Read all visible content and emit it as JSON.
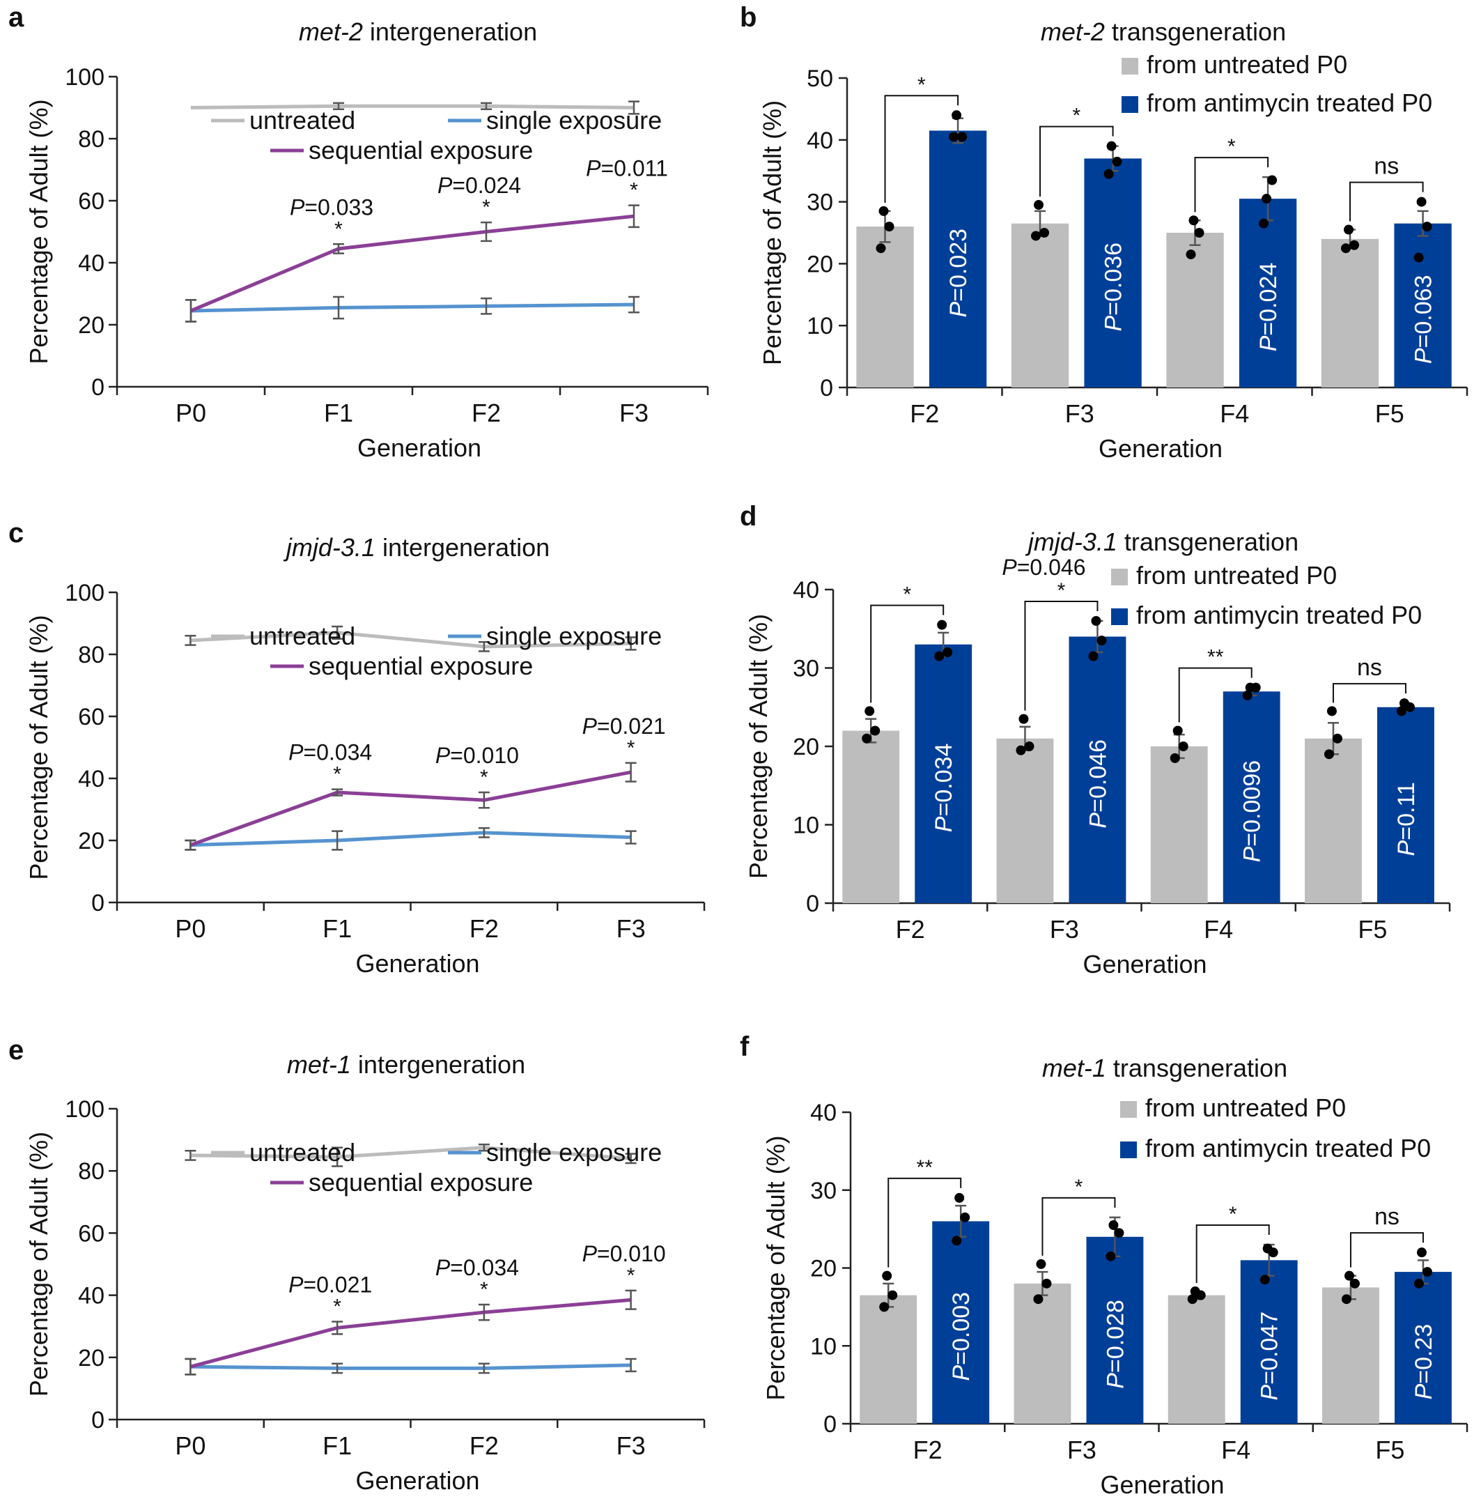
{
  "figure_title": "",
  "colors": {
    "untreated": "#bcbcbc",
    "single": "#5593cf",
    "sequential": "#8b3f96",
    "bar_untreated": "#bdbdbd",
    "bar_treated": "#003f98",
    "axis": "#222222",
    "error": "#555555"
  },
  "chart_data": [
    {
      "type": "line",
      "panel": "a",
      "title_gene": "met-2",
      "title_suffix": "intergeneration",
      "xlabel": "Generation",
      "ylabel": "Percentage of Adult (%)",
      "ylim": [
        0,
        100
      ],
      "yticks": [
        0,
        20,
        40,
        60,
        80,
        100
      ],
      "categories": [
        "P0",
        "F1",
        "F2",
        "F3"
      ],
      "legend": {
        "untreated": "untreated",
        "single": "single exposure",
        "sequential": "sequential exposure"
      },
      "series": [
        {
          "name": "untreated",
          "values": [
            90,
            90.5,
            90.5,
            90
          ],
          "errors": [
            0,
            1,
            1,
            2
          ]
        },
        {
          "name": "single exposure",
          "values": [
            24.5,
            25.5,
            26,
            26.5
          ],
          "errors": [
            3.5,
            3.5,
            2.5,
            2.5
          ]
        },
        {
          "name": "sequential exposure",
          "values": [
            24.5,
            44.5,
            50,
            55
          ],
          "errors": [
            3.5,
            1.5,
            3,
            3.5
          ]
        }
      ],
      "annotations": [
        {
          "index": 1,
          "p": "=0.033",
          "star": "*"
        },
        {
          "index": 2,
          "p": "=0.024",
          "star": "*"
        },
        {
          "index": 3,
          "p": "=0.011",
          "star": "*"
        }
      ]
    },
    {
      "type": "bar",
      "panel": "b",
      "title_gene": "met-2",
      "title_suffix": "transgeneration",
      "xlabel": "Generation",
      "ylabel": "Percentage of Adult (%)",
      "ylim": [
        0,
        50
      ],
      "yticks": [
        0,
        10,
        20,
        30,
        40,
        50
      ],
      "categories": [
        "F2",
        "F3",
        "F4",
        "F5"
      ],
      "legend": [
        "from untreated P0",
        "from antimycin treated P0"
      ],
      "series": [
        {
          "name": "from untreated P0",
          "values": [
            26,
            26.5,
            25,
            24
          ],
          "errors": [
            2.5,
            2,
            2,
            1.5
          ],
          "points": [
            [
              28.5,
              26,
              22.5
            ],
            [
              29.5,
              25,
              24.5
            ],
            [
              27,
              25,
              21.5
            ],
            [
              25.5,
              23,
              22.5
            ]
          ]
        },
        {
          "name": "from antimycin treated P0",
          "values": [
            41.5,
            37,
            30.5,
            26.5
          ],
          "errors": [
            2,
            2,
            3.5,
            2
          ],
          "points": [
            [
              44,
              40.5,
              40.5
            ],
            [
              39,
              36.5,
              34.5
            ],
            [
              30.5,
              33.5,
              26.5
            ],
            [
              30,
              26,
              21
            ]
          ]
        }
      ],
      "pvalues": [
        "=0.023",
        "=0.036",
        "=0.024",
        "=0.063"
      ],
      "sig": [
        "*",
        "*",
        "*",
        "ns"
      ]
    },
    {
      "type": "line",
      "panel": "c",
      "title_gene": "jmjd-3.1",
      "title_suffix": "intergeneration",
      "xlabel": "Generation",
      "ylabel": "Percentage of Adult (%)",
      "ylim": [
        0,
        100
      ],
      "yticks": [
        0,
        20,
        40,
        60,
        80,
        100
      ],
      "categories": [
        "P0",
        "F1",
        "F2",
        "F3"
      ],
      "legend": {
        "untreated": "untreated",
        "single": "single exposure",
        "sequential": "sequential exposure"
      },
      "series": [
        {
          "name": "untreated",
          "values": [
            84.5,
            87,
            82.5,
            83.5
          ],
          "errors": [
            1.5,
            2,
            1.5,
            2
          ]
        },
        {
          "name": "single exposure",
          "values": [
            18.5,
            20,
            22.5,
            21
          ],
          "errors": [
            1.5,
            3,
            1.5,
            2
          ]
        },
        {
          "name": "sequential exposure",
          "values": [
            18.5,
            35.5,
            33,
            42
          ],
          "errors": [
            1.5,
            1,
            2.5,
            3
          ]
        }
      ],
      "annotations": [
        {
          "index": 1,
          "p": "=0.034",
          "star": "*"
        },
        {
          "index": 2,
          "p": "=0.010",
          "star": "*"
        },
        {
          "index": 3,
          "p": "=0.021",
          "star": "*"
        }
      ]
    },
    {
      "type": "bar",
      "panel": "d",
      "title_gene": "jmjd-3.1",
      "title_suffix": "transgeneration",
      "xlabel": "Generation",
      "ylabel": "Percentage of Adult (%)",
      "ylim": [
        0,
        40
      ],
      "yticks": [
        0,
        10,
        20,
        30,
        40
      ],
      "categories": [
        "F2",
        "F3",
        "F4",
        "F5"
      ],
      "legend": [
        "from untreated P0",
        "from antimycin treated P0"
      ],
      "series": [
        {
          "name": "from untreated P0",
          "values": [
            22,
            21,
            20,
            21
          ],
          "errors": [
            1.5,
            1.5,
            1.5,
            2
          ],
          "points": [
            [
              24.5,
              22,
              21
            ],
            [
              23.5,
              20,
              19.5
            ],
            [
              22,
              20,
              18.5
            ],
            [
              24.5,
              21,
              19
            ]
          ]
        },
        {
          "name": "from antimycin treated P0",
          "values": [
            33,
            34,
            27,
            25
          ],
          "errors": [
            1.5,
            2,
            0.5,
            0.5
          ],
          "points": [
            [
              35.5,
              32,
              31.5
            ],
            [
              36,
              33.5,
              31.5
            ],
            [
              27.5,
              27.5,
              26.5
            ],
            [
              25.5,
              25,
              24.5
            ]
          ]
        }
      ],
      "pvalues": [
        "=0.034",
        "=0.046",
        "=0.0096",
        "=0.11"
      ],
      "sig": [
        "*",
        "*",
        "**",
        "ns"
      ],
      "extra_p": {
        "index": 1,
        "text": "=0.046"
      }
    },
    {
      "type": "line",
      "panel": "e",
      "title_gene": "met-1",
      "title_suffix": "intergeneration",
      "xlabel": "Generation",
      "ylabel": "Percentage of Adult (%)",
      "ylim": [
        0,
        100
      ],
      "yticks": [
        0,
        20,
        40,
        60,
        80,
        100
      ],
      "categories": [
        "P0",
        "F1",
        "F2",
        "F3"
      ],
      "legend": {
        "untreated": "untreated",
        "single": "single exposure",
        "sequential": "sequential exposure"
      },
      "series": [
        {
          "name": "untreated",
          "values": [
            85,
            84.5,
            87.5,
            84
          ],
          "errors": [
            1.5,
            3,
            1,
            1.5
          ]
        },
        {
          "name": "single exposure",
          "values": [
            17,
            16.5,
            16.5,
            17.5
          ],
          "errors": [
            2.5,
            1.5,
            1.5,
            2
          ]
        },
        {
          "name": "sequential exposure",
          "values": [
            17,
            29.5,
            34.5,
            38.5
          ],
          "errors": [
            2.5,
            2,
            2.5,
            3
          ]
        }
      ],
      "annotations": [
        {
          "index": 1,
          "p": "=0.021",
          "star": "*"
        },
        {
          "index": 2,
          "p": "=0.034",
          "star": "*"
        },
        {
          "index": 3,
          "p": "=0.010",
          "star": "*"
        }
      ]
    },
    {
      "type": "bar",
      "panel": "f",
      "title_gene": "met-1",
      "title_suffix": "transgeneration",
      "xlabel": "Generation",
      "ylabel": "Percentage of Adult (%)",
      "ylim": [
        0,
        40
      ],
      "yticks": [
        0,
        10,
        20,
        30,
        40
      ],
      "categories": [
        "F2",
        "F3",
        "F4",
        "F5"
      ],
      "legend": [
        "from untreated P0",
        "from antimycin treated P0"
      ],
      "series": [
        {
          "name": "from untreated P0",
          "values": [
            16.5,
            18,
            16.5,
            17.5
          ],
          "errors": [
            1.5,
            1.5,
            0.5,
            1.5
          ],
          "points": [
            [
              19,
              16.5,
              15
            ],
            [
              20.5,
              18,
              16
            ],
            [
              17,
              16.5,
              16
            ],
            [
              19,
              18,
              16
            ]
          ]
        },
        {
          "name": "from antimycin treated P0",
          "values": [
            26,
            24,
            21,
            19.5
          ],
          "errors": [
            2,
            2.5,
            2,
            1.5
          ],
          "points": [
            [
              29,
              26.5,
              23.5
            ],
            [
              25.5,
              24.5,
              21.5
            ],
            [
              22.5,
              22,
              18.5
            ],
            [
              22,
              19.5,
              18
            ]
          ]
        }
      ],
      "pvalues": [
        "=0.003",
        "=0.028",
        "=0.047",
        "=0.23"
      ],
      "sig": [
        "**",
        "*",
        "*",
        "ns"
      ]
    }
  ]
}
